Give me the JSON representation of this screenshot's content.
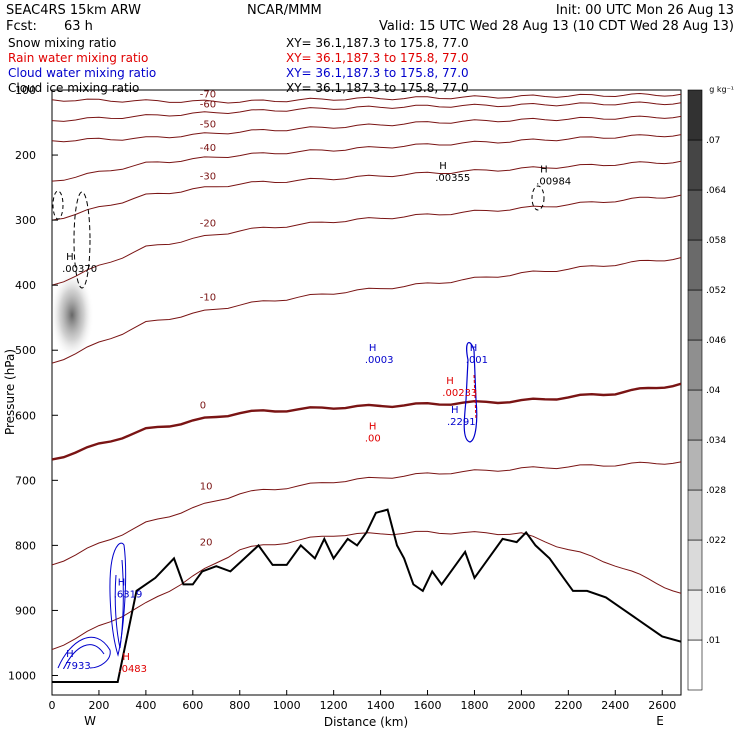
{
  "header": {
    "model": "SEAC4RS 15km ARW",
    "org": "NCAR/MMM",
    "init": "Init: 00 UTC Mon 26 Aug 13",
    "fcst_label": "Fcst:",
    "fcst_value": "63 h",
    "valid": "Valid: 15 UTC Wed 28 Aug 13 (10 CDT Wed 28 Aug 13)"
  },
  "fields": [
    {
      "name": "Snow mixing ratio",
      "xy": "XY=  36.1,187.3 to 175.8, 77.0",
      "color": "#000000"
    },
    {
      "name": "Rain water mixing ratio",
      "xy": "XY=  36.1,187.3 to 175.8, 77.0",
      "color": "#e00000"
    },
    {
      "name": "Cloud water mixing ratio",
      "xy": "XY=  36.1,187.3 to 175.8, 77.0",
      "color": "#0000cc"
    },
    {
      "name": "Cloud ice mixing ratio",
      "xy": "XY=  36.1,187.3 to 175.8, 77.0",
      "color": "#000000"
    }
  ],
  "colors": {
    "temperature": "#7a1414",
    "terrain": "#000000",
    "cloud_water": "#0000cc",
    "rain_water": "#e00000"
  },
  "chart_data": {
    "type": "cross-section",
    "xlabel": "Distance (km)",
    "ylabel": "Pressure (hPa)",
    "xlim": [
      0,
      2680
    ],
    "ylim": [
      1030,
      100
    ],
    "x_ticks": [
      0,
      200,
      400,
      600,
      800,
      1000,
      1200,
      1400,
      1600,
      1800,
      2000,
      2200,
      2400,
      2600
    ],
    "y_ticks": [
      1000,
      900,
      800,
      700,
      600,
      500,
      400,
      300,
      200,
      100
    ],
    "x_end_labels": {
      "left": "W",
      "right": "E"
    },
    "colorbar": {
      "unit": "g kg⁻¹",
      "ticks": [
        ".01",
        ".016",
        ".022",
        ".028",
        ".034",
        ".04",
        ".046",
        ".052",
        ".058",
        ".064",
        ".07"
      ]
    },
    "temperature_contours": [
      {
        "label": "-70",
        "points": [
          [
            0,
            115
          ],
          [
            400,
            117
          ],
          [
            800,
            118
          ],
          [
            1200,
            114
          ],
          [
            1600,
            112
          ],
          [
            2000,
            110
          ],
          [
            2400,
            108
          ],
          [
            2680,
            107
          ]
        ]
      },
      {
        "label": "-60",
        "points": [
          [
            0,
            147
          ],
          [
            400,
            140
          ],
          [
            800,
            133
          ],
          [
            1200,
            128
          ],
          [
            1600,
            125
          ],
          [
            2000,
            123
          ],
          [
            2400,
            121
          ],
          [
            2680,
            120
          ]
        ]
      },
      {
        "label": "-50",
        "points": [
          [
            0,
            178
          ],
          [
            400,
            174
          ],
          [
            800,
            164
          ],
          [
            1200,
            157
          ],
          [
            1600,
            150
          ],
          [
            2000,
            146
          ],
          [
            2400,
            143
          ],
          [
            2680,
            141
          ]
        ]
      },
      {
        "label": "-40",
        "points": [
          [
            0,
            240
          ],
          [
            400,
            213
          ],
          [
            800,
            200
          ],
          [
            1200,
            192
          ],
          [
            1600,
            184
          ],
          [
            2000,
            178
          ],
          [
            2400,
            172
          ],
          [
            2680,
            169
          ]
        ]
      },
      {
        "label": "-30",
        "points": [
          [
            0,
            300
          ],
          [
            400,
            262
          ],
          [
            800,
            244
          ],
          [
            1200,
            236
          ],
          [
            1600,
            228
          ],
          [
            2000,
            221
          ],
          [
            2400,
            214
          ],
          [
            2680,
            210
          ]
        ]
      },
      {
        "label": "-20",
        "points": [
          [
            0,
            400
          ],
          [
            400,
            342
          ],
          [
            800,
            316
          ],
          [
            1200,
            302
          ],
          [
            1600,
            292
          ],
          [
            2000,
            282
          ],
          [
            2400,
            270
          ],
          [
            2680,
            262
          ]
        ]
      },
      {
        "label": "-10",
        "points": [
          [
            0,
            520
          ],
          [
            400,
            458
          ],
          [
            800,
            430
          ],
          [
            1200,
            412
          ],
          [
            1600,
            398
          ],
          [
            2000,
            382
          ],
          [
            2400,
            368
          ],
          [
            2680,
            358
          ]
        ]
      },
      {
        "label": "0",
        "points": [
          [
            0,
            668
          ],
          [
            400,
            622
          ],
          [
            800,
            596
          ],
          [
            1200,
            588
          ],
          [
            1600,
            583
          ],
          [
            2000,
            578
          ],
          [
            2400,
            566
          ],
          [
            2680,
            552
          ]
        ]
      },
      {
        "label": "10",
        "points": [
          [
            0,
            830
          ],
          [
            400,
            766
          ],
          [
            800,
            720
          ],
          [
            1200,
            702
          ],
          [
            1600,
            690
          ],
          [
            2000,
            682
          ],
          [
            2400,
            676
          ],
          [
            2680,
            672
          ]
        ]
      },
      {
        "label": "20",
        "points": [
          [
            0,
            960
          ],
          [
            400,
            890
          ],
          [
            800,
            806
          ],
          [
            1200,
            784
          ],
          [
            1600,
            780
          ],
          [
            2000,
            782
          ],
          [
            2400,
            830
          ],
          [
            2680,
            874
          ]
        ]
      }
    ],
    "labeled_maxima": [
      {
        "x": 60,
        "p": 380,
        "text": ".00370",
        "color": "#000000"
      },
      {
        "x": 1650,
        "p": 240,
        "text": ".00355",
        "color": "#000000"
      },
      {
        "x": 2080,
        "p": 245,
        "text": ".00984",
        "color": "#000000"
      },
      {
        "x": 1350,
        "p": 520,
        "text": ".0003",
        "color": "#0000cc"
      },
      {
        "x": 1780,
        "p": 520,
        "text": ".001",
        "color": "#0000cc"
      },
      {
        "x": 1680,
        "p": 570,
        "text": ".00233",
        "color": "#e00000"
      },
      {
        "x": 1700,
        "p": 615,
        "text": ".2291",
        "color": "#0000cc"
      },
      {
        "x": 1350,
        "p": 640,
        "text": ".00",
        "color": "#e00000"
      },
      {
        "x": 280,
        "p": 880,
        "text": ".6319",
        "color": "#0000cc"
      },
      {
        "x": 60,
        "p": 990,
        "text": ".7933",
        "color": "#0000cc"
      },
      {
        "x": 300,
        "p": 995,
        "text": ".0483",
        "color": "#e00000"
      }
    ],
    "terrain": [
      [
        0,
        1010
      ],
      [
        280,
        1010
      ],
      [
        360,
        870
      ],
      [
        440,
        850
      ],
      [
        520,
        820
      ],
      [
        560,
        860
      ],
      [
        600,
        860
      ],
      [
        640,
        840
      ],
      [
        700,
        832
      ],
      [
        760,
        840
      ],
      [
        820,
        820
      ],
      [
        880,
        800
      ],
      [
        940,
        830
      ],
      [
        1000,
        830
      ],
      [
        1060,
        800
      ],
      [
        1120,
        820
      ],
      [
        1160,
        790
      ],
      [
        1200,
        820
      ],
      [
        1260,
        790
      ],
      [
        1300,
        800
      ],
      [
        1340,
        780
      ],
      [
        1380,
        750
      ],
      [
        1430,
        745
      ],
      [
        1470,
        800
      ],
      [
        1500,
        820
      ],
      [
        1540,
        860
      ],
      [
        1580,
        870
      ],
      [
        1620,
        840
      ],
      [
        1660,
        860
      ],
      [
        1720,
        830
      ],
      [
        1760,
        810
      ],
      [
        1800,
        850
      ],
      [
        1860,
        820
      ],
      [
        1920,
        790
      ],
      [
        1980,
        795
      ],
      [
        2020,
        780
      ],
      [
        2060,
        800
      ],
      [
        2120,
        820
      ],
      [
        2180,
        850
      ],
      [
        2220,
        870
      ],
      [
        2280,
        870
      ],
      [
        2360,
        880
      ],
      [
        2440,
        900
      ],
      [
        2520,
        920
      ],
      [
        2600,
        940
      ],
      [
        2680,
        948
      ]
    ]
  }
}
